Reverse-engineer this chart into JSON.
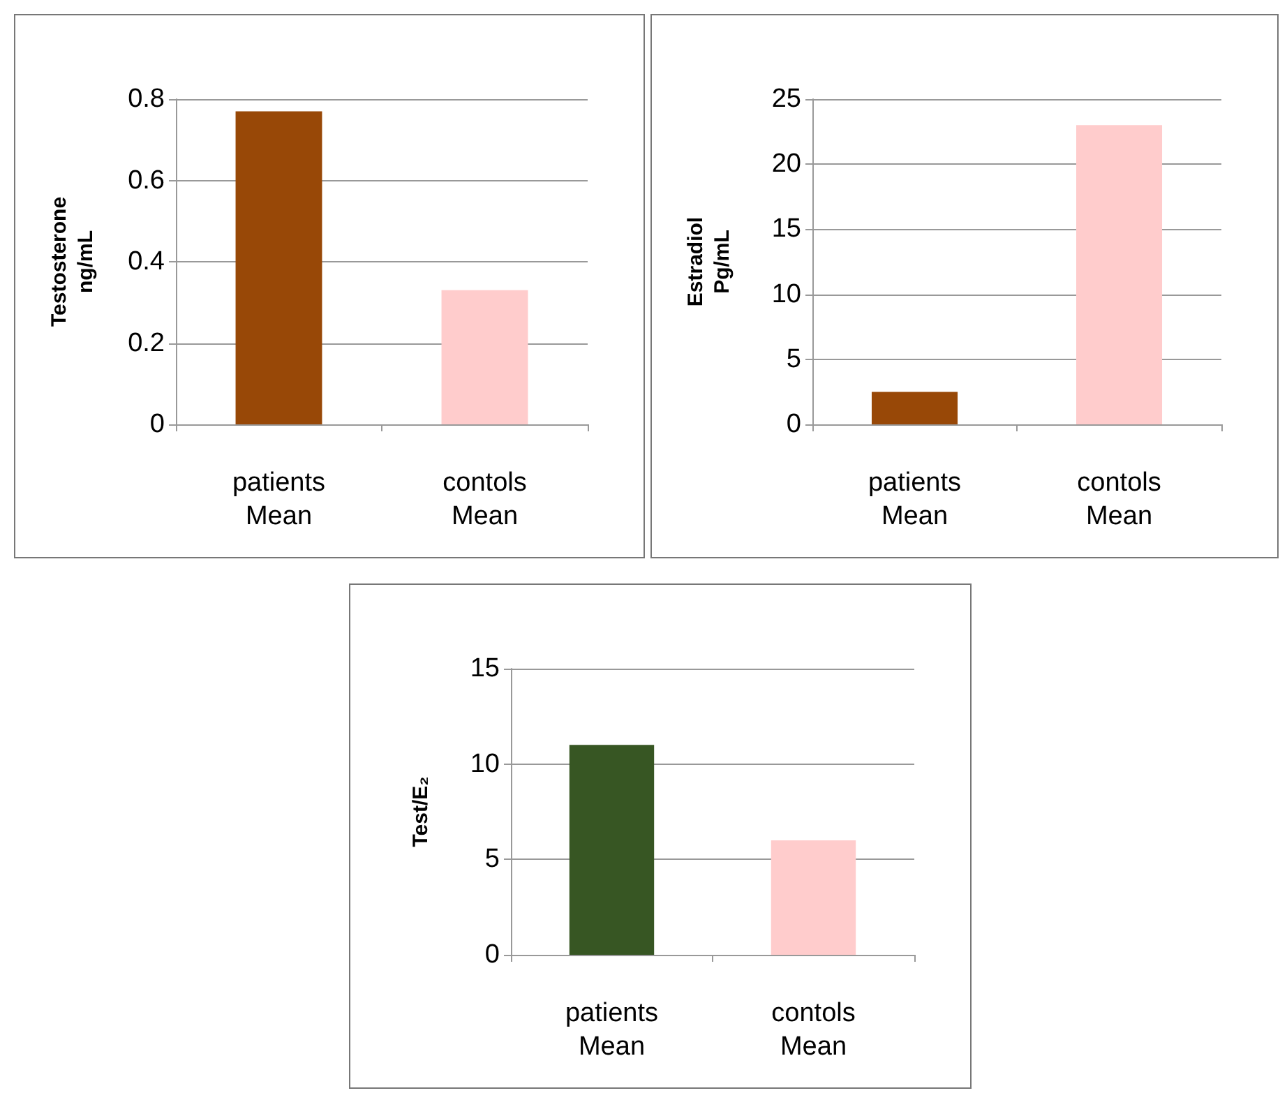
{
  "chart_data": [
    {
      "type": "bar",
      "ylabel": "Testosterone\nng/mL",
      "categories": [
        "patients\nMean",
        "contols\nMean"
      ],
      "values": [
        0.77,
        0.33
      ],
      "colors": [
        "#984807",
        "#ffcccc"
      ],
      "ylim": [
        0,
        0.8
      ],
      "yticks": [
        0,
        0.2,
        0.4,
        0.6,
        0.8
      ],
      "grid": "y"
    },
    {
      "type": "bar",
      "ylabel": "Estradiol\nPg/mL",
      "categories": [
        "patients\nMean",
        "contols\nMean"
      ],
      "values": [
        2.5,
        23
      ],
      "colors": [
        "#984807",
        "#ffcccc"
      ],
      "ylim": [
        0,
        25
      ],
      "yticks": [
        0,
        5,
        10,
        15,
        20,
        25
      ],
      "grid": "y"
    },
    {
      "type": "bar",
      "ylabel": "Test/E₂",
      "categories": [
        "patients\nMean",
        "contols\nMean"
      ],
      "values": [
        11,
        6
      ],
      "colors": [
        "#375623",
        "#ffcccc"
      ],
      "ylim": [
        0,
        15
      ],
      "yticks": [
        0,
        5,
        10,
        15
      ],
      "grid": "y"
    }
  ]
}
